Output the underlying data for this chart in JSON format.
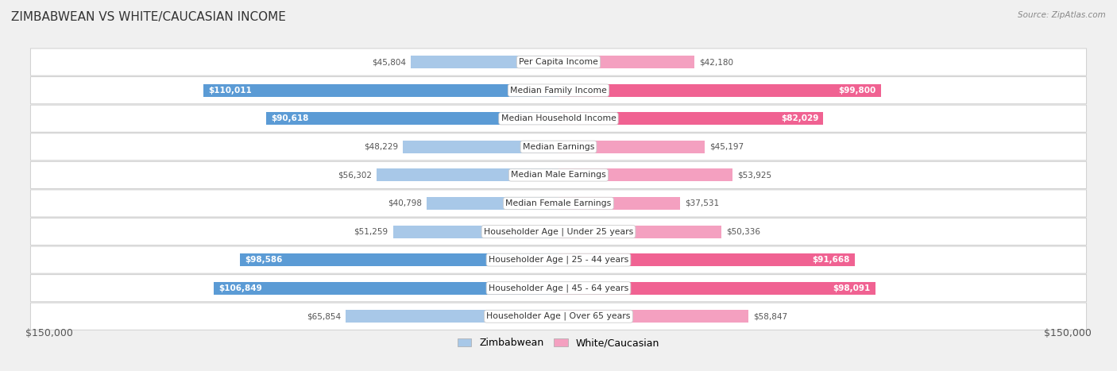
{
  "title": "ZIMBABWEAN VS WHITE/CAUCASIAN INCOME",
  "source": "Source: ZipAtlas.com",
  "categories": [
    "Per Capita Income",
    "Median Family Income",
    "Median Household Income",
    "Median Earnings",
    "Median Male Earnings",
    "Median Female Earnings",
    "Householder Age | Under 25 years",
    "Householder Age | 25 - 44 years",
    "Householder Age | 45 - 64 years",
    "Householder Age | Over 65 years"
  ],
  "zimbabwean_values": [
    45804,
    110011,
    90618,
    48229,
    56302,
    40798,
    51259,
    98586,
    106849,
    65854
  ],
  "white_values": [
    42180,
    99800,
    82029,
    45197,
    53925,
    37531,
    50336,
    91668,
    98091,
    58847
  ],
  "zimbabwean_labels": [
    "$45,804",
    "$110,011",
    "$90,618",
    "$48,229",
    "$56,302",
    "$40,798",
    "$51,259",
    "$98,586",
    "$106,849",
    "$65,854"
  ],
  "white_labels": [
    "$42,180",
    "$99,800",
    "$82,029",
    "$45,197",
    "$53,925",
    "$37,531",
    "$50,336",
    "$91,668",
    "$98,091",
    "$58,847"
  ],
  "max_value": 150000,
  "zim_light": "#a8c8e8",
  "zim_dark": "#5b9bd5",
  "white_light": "#f4a0c0",
  "white_dark": "#f06292",
  "background_color": "#f0f0f0",
  "row_bg": "#f8f8f8",
  "bar_height": 0.45,
  "inside_threshold": 70000,
  "legend_zimbabwean": "Zimbabwean",
  "legend_white": "White/Caucasian",
  "x_label_left": "$150,000",
  "x_label_right": "$150,000"
}
